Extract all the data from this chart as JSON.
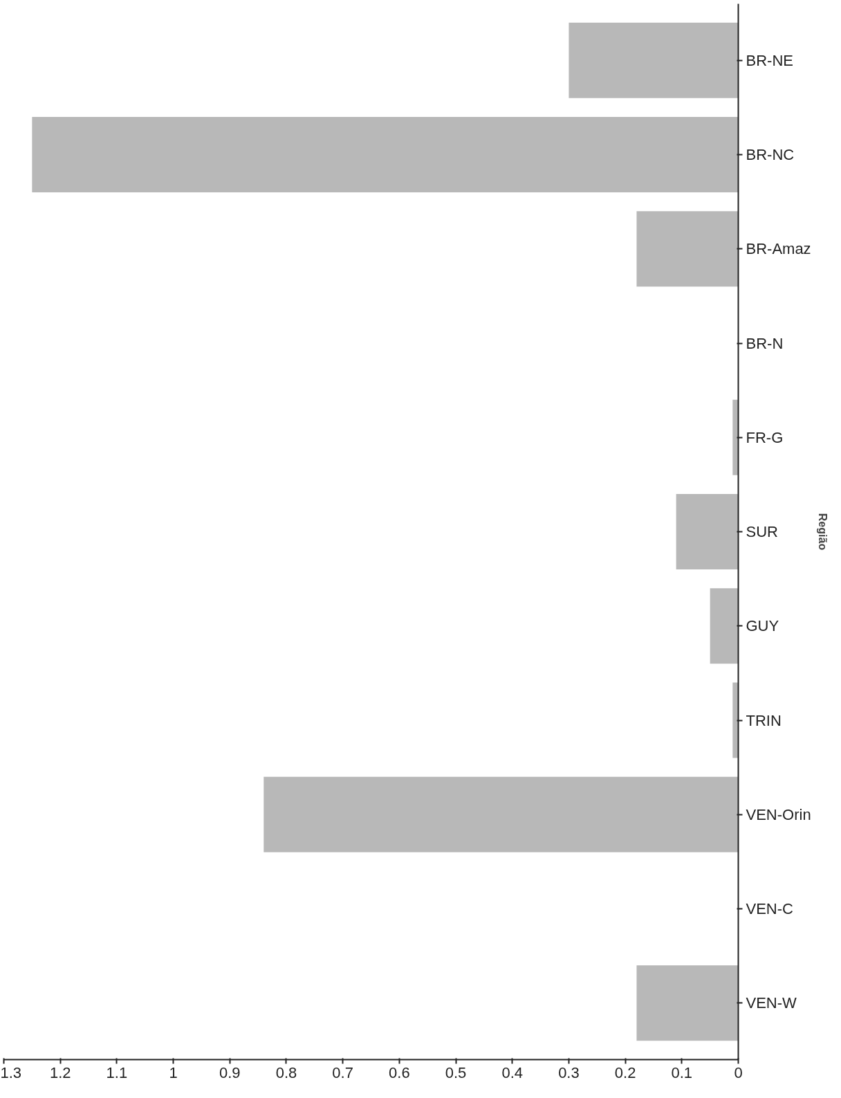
{
  "chart_data": {
    "type": "bar",
    "orientation": "horizontal",
    "ylabel": "Região",
    "categories": [
      "BR-NE",
      "BR-NC",
      "BR-Amaz",
      "BR-N",
      "FR-G",
      "SUR",
      "GUY",
      "TRIN",
      "VEN-Orin",
      "VEN-C",
      "VEN-W"
    ],
    "values": [
      0.3,
      1.25,
      0.18,
      0,
      0.01,
      0.11,
      0.05,
      0.01,
      0.84,
      0,
      0.18
    ],
    "color": "#b8b8b8",
    "xlim": [
      1.3,
      0
    ],
    "xticks": [
      0,
      0.1,
      0.2,
      0.3,
      0.4,
      0.5,
      0.6,
      0.7,
      0.8,
      0.9,
      1,
      1.1,
      1.2,
      1.3
    ],
    "grid": false
  }
}
